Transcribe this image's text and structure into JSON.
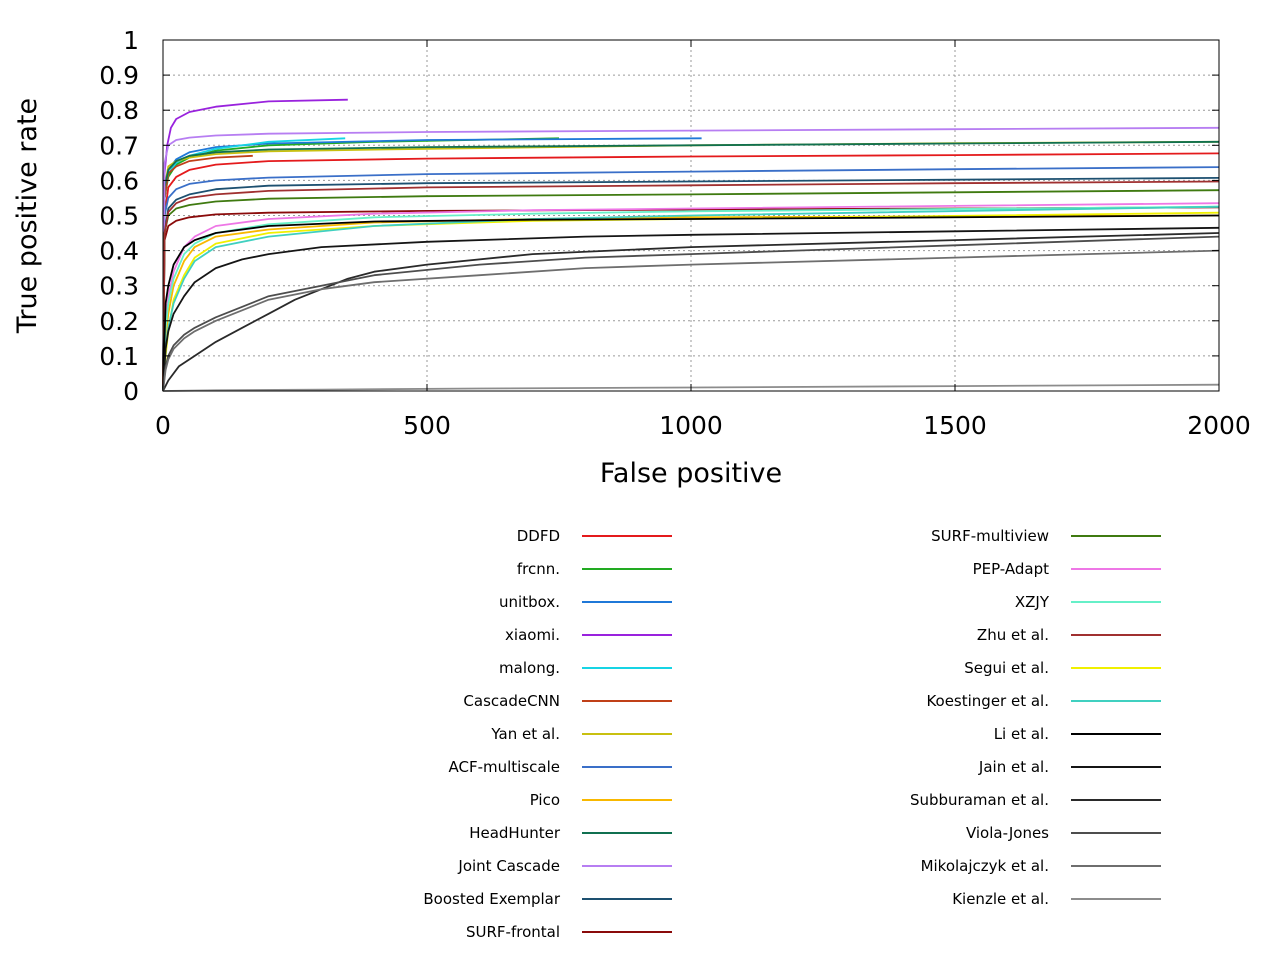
{
  "chart_data": {
    "type": "line",
    "title": "",
    "xlabel": "False positive",
    "ylabel": "True positive rate",
    "xlim": [
      0,
      2000
    ],
    "ylim": [
      0,
      1
    ],
    "x_ticks": [
      0,
      500,
      1000,
      1500,
      2000
    ],
    "y_ticks": [
      0,
      0.1,
      0.2,
      0.3,
      0.4,
      0.5,
      0.6,
      0.7,
      0.8,
      0.9,
      1
    ],
    "x_tick_labels": [
      "0",
      "500",
      "1000",
      "1500",
      "2000"
    ],
    "y_tick_labels": [
      "0",
      "0.1",
      "0.2",
      "0.3",
      "0.4",
      "0.5",
      "0.6",
      "0.7",
      "0.8",
      "0.9",
      "1"
    ],
    "grid": true,
    "legend_position": "bottom",
    "series": [
      {
        "name": "DDFD",
        "color": "#e41a1c",
        "x": [
          0,
          3,
          10,
          25,
          50,
          100,
          200,
          500,
          1000,
          1500,
          2000
        ],
        "y": [
          0,
          0.5,
          0.58,
          0.61,
          0.63,
          0.645,
          0.655,
          0.662,
          0.668,
          0.672,
          0.677
        ]
      },
      {
        "name": "frcnn.",
        "color": "#22aa22",
        "x": [
          0,
          3,
          10,
          25,
          50,
          100,
          200,
          400,
          750
        ],
        "y": [
          0,
          0.55,
          0.61,
          0.645,
          0.665,
          0.685,
          0.7,
          0.71,
          0.72
        ]
      },
      {
        "name": "unitbox.",
        "color": "#1f78d8",
        "x": [
          0,
          3,
          10,
          25,
          50,
          100,
          200,
          500,
          1020
        ],
        "y": [
          0,
          0.55,
          0.63,
          0.66,
          0.68,
          0.695,
          0.705,
          0.715,
          0.72
        ]
      },
      {
        "name": "xiaomi.",
        "color": "#9922dd",
        "x": [
          0,
          3,
          8,
          15,
          25,
          50,
          100,
          200,
          350
        ],
        "y": [
          0,
          0.62,
          0.7,
          0.75,
          0.775,
          0.795,
          0.81,
          0.825,
          0.83
        ]
      },
      {
        "name": "malong.",
        "color": "#17d4e4",
        "x": [
          0,
          3,
          10,
          25,
          50,
          100,
          200,
          345
        ],
        "y": [
          0,
          0.55,
          0.62,
          0.65,
          0.67,
          0.69,
          0.71,
          0.72
        ]
      },
      {
        "name": "CascadeCNN",
        "color": "#c04018",
        "x": [
          0,
          3,
          10,
          25,
          50,
          100,
          170
        ],
        "y": [
          0,
          0.55,
          0.62,
          0.64,
          0.655,
          0.665,
          0.67
        ]
      },
      {
        "name": "Yan et al.",
        "color": "#c8c010",
        "x": [
          0,
          3,
          10,
          25,
          50,
          100,
          200,
          500,
          1000,
          1500,
          2000
        ],
        "y": [
          0,
          0.58,
          0.64,
          0.655,
          0.665,
          0.675,
          0.683,
          0.69,
          0.7,
          0.706,
          0.71
        ]
      },
      {
        "name": "ACF-multiscale",
        "color": "#3a6fc8",
        "x": [
          0,
          3,
          10,
          25,
          50,
          100,
          200,
          500,
          1000,
          1500,
          2000
        ],
        "y": [
          0,
          0.5,
          0.55,
          0.575,
          0.59,
          0.6,
          0.608,
          0.618,
          0.625,
          0.632,
          0.638
        ]
      },
      {
        "name": "Pico",
        "color": "#f8b800",
        "x": [
          0,
          5,
          10,
          20,
          40,
          60,
          100,
          200,
          400,
          700,
          1000,
          2000
        ],
        "y": [
          0,
          0.15,
          0.22,
          0.3,
          0.37,
          0.41,
          0.44,
          0.46,
          0.48,
          0.49,
          0.495,
          0.5
        ]
      },
      {
        "name": "HeadHunter",
        "color": "#107050",
        "x": [
          0,
          3,
          10,
          25,
          50,
          100,
          200,
          500,
          1000,
          1500,
          2000
        ],
        "y": [
          0,
          0.58,
          0.63,
          0.655,
          0.67,
          0.68,
          0.688,
          0.695,
          0.7,
          0.705,
          0.71
        ]
      },
      {
        "name": "Joint Cascade",
        "color": "#b77ef2",
        "x": [
          0,
          3,
          10,
          25,
          50,
          100,
          200,
          500,
          1000,
          1500,
          2000
        ],
        "y": [
          0,
          0.65,
          0.7,
          0.715,
          0.722,
          0.728,
          0.733,
          0.738,
          0.742,
          0.746,
          0.75
        ]
      },
      {
        "name": "Boosted Exemplar",
        "color": "#1d5070",
        "x": [
          0,
          3,
          10,
          25,
          50,
          100,
          200,
          500,
          1000,
          1500,
          2000
        ],
        "y": [
          0,
          0.45,
          0.52,
          0.545,
          0.56,
          0.575,
          0.585,
          0.592,
          0.597,
          0.602,
          0.607
        ]
      },
      {
        "name": "SURF-frontal",
        "color": "#8a0a0a",
        "x": [
          0,
          3,
          10,
          25,
          50,
          100,
          200,
          500,
          1000,
          1500,
          2000
        ],
        "y": [
          0,
          0.43,
          0.47,
          0.485,
          0.495,
          0.503,
          0.508,
          0.513,
          0.517,
          0.52,
          0.523
        ]
      },
      {
        "name": "SURF-multiview",
        "color": "#3f7a10",
        "x": [
          0,
          3,
          10,
          25,
          50,
          100,
          200,
          500,
          1000,
          1500,
          2000
        ],
        "y": [
          0,
          0.45,
          0.5,
          0.52,
          0.53,
          0.54,
          0.548,
          0.555,
          0.56,
          0.566,
          0.572
        ]
      },
      {
        "name": "PEP-Adapt",
        "color": "#ee77e6",
        "x": [
          0,
          5,
          10,
          20,
          40,
          60,
          100,
          200,
          400,
          700,
          1000,
          2000
        ],
        "y": [
          0,
          0.2,
          0.27,
          0.34,
          0.41,
          0.44,
          0.47,
          0.49,
          0.505,
          0.515,
          0.52,
          0.535
        ]
      },
      {
        "name": "XZJY",
        "color": "#66f0c8",
        "x": [
          0,
          5,
          10,
          20,
          40,
          60,
          100,
          200,
          400,
          700,
          1000,
          2000
        ],
        "y": [
          0,
          0.18,
          0.25,
          0.32,
          0.39,
          0.42,
          0.45,
          0.475,
          0.495,
          0.505,
          0.512,
          0.525
        ]
      },
      {
        "name": "Zhu et al.",
        "color": "#a03030",
        "x": [
          0,
          3,
          10,
          25,
          50,
          100,
          200,
          500,
          1000,
          1500,
          2000
        ],
        "y": [
          0,
          0.45,
          0.51,
          0.535,
          0.55,
          0.56,
          0.57,
          0.58,
          0.586,
          0.592,
          0.597
        ]
      },
      {
        "name": "Segui et al.",
        "color": "#f0f000",
        "x": [
          0,
          5,
          10,
          20,
          40,
          60,
          100,
          200,
          400,
          700,
          1000,
          2000
        ],
        "y": [
          0,
          0.1,
          0.17,
          0.26,
          0.33,
          0.38,
          0.42,
          0.45,
          0.47,
          0.485,
          0.49,
          0.508
        ]
      },
      {
        "name": "Koestinger et al.",
        "color": "#40d0c0",
        "x": [
          0,
          5,
          10,
          20,
          40,
          60,
          100,
          200,
          400,
          700,
          1000,
          2000
        ],
        "y": [
          0,
          0.12,
          0.18,
          0.25,
          0.32,
          0.37,
          0.41,
          0.44,
          0.47,
          0.49,
          0.5,
          0.525
        ]
      },
      {
        "name": "Li et al.",
        "color": "#000000",
        "x": [
          0,
          5,
          10,
          20,
          40,
          60,
          100,
          200,
          400,
          700,
          1000,
          2000
        ],
        "y": [
          0,
          0.25,
          0.3,
          0.36,
          0.41,
          0.43,
          0.45,
          0.47,
          0.483,
          0.488,
          0.49,
          0.5
        ]
      },
      {
        "name": "Jain et al.",
        "color": "#151515",
        "x": [
          0,
          5,
          10,
          20,
          40,
          60,
          100,
          150,
          200,
          300,
          500,
          800,
          1000,
          1500,
          2000
        ],
        "y": [
          0,
          0.12,
          0.17,
          0.22,
          0.27,
          0.31,
          0.35,
          0.375,
          0.39,
          0.41,
          0.425,
          0.44,
          0.445,
          0.455,
          0.465
        ]
      },
      {
        "name": "Subburaman et al.",
        "color": "#2a2a2a",
        "x": [
          0,
          10,
          30,
          60,
          100,
          150,
          200,
          250,
          300,
          350,
          400,
          500,
          700,
          1000,
          1500,
          2000
        ],
        "y": [
          0,
          0.03,
          0.07,
          0.1,
          0.14,
          0.18,
          0.22,
          0.26,
          0.29,
          0.32,
          0.34,
          0.36,
          0.39,
          0.41,
          0.43,
          0.45
        ]
      },
      {
        "name": "Viola-Jones",
        "color": "#4d4d4d",
        "x": [
          0,
          5,
          10,
          20,
          40,
          60,
          100,
          150,
          200,
          300,
          400,
          600,
          800,
          1000,
          1500,
          2000
        ],
        "y": [
          0,
          0.07,
          0.1,
          0.13,
          0.16,
          0.18,
          0.21,
          0.24,
          0.27,
          0.3,
          0.33,
          0.36,
          0.38,
          0.39,
          0.415,
          0.44
        ]
      },
      {
        "name": "Mikolajczyk et al.",
        "color": "#6e6e6e",
        "x": [
          0,
          5,
          10,
          20,
          40,
          60,
          100,
          150,
          200,
          300,
          400,
          600,
          800,
          1000,
          1500,
          2000
        ],
        "y": [
          0,
          0.06,
          0.09,
          0.12,
          0.15,
          0.17,
          0.2,
          0.23,
          0.26,
          0.29,
          0.31,
          0.33,
          0.35,
          0.36,
          0.38,
          0.4
        ]
      },
      {
        "name": "Kienzle et al.",
        "color": "#8c8c8c",
        "x": [
          0,
          100,
          300,
          600,
          1000,
          1500,
          2000
        ],
        "y": [
          0,
          0.002,
          0.004,
          0.007,
          0.01,
          0.014,
          0.018
        ]
      }
    ]
  }
}
